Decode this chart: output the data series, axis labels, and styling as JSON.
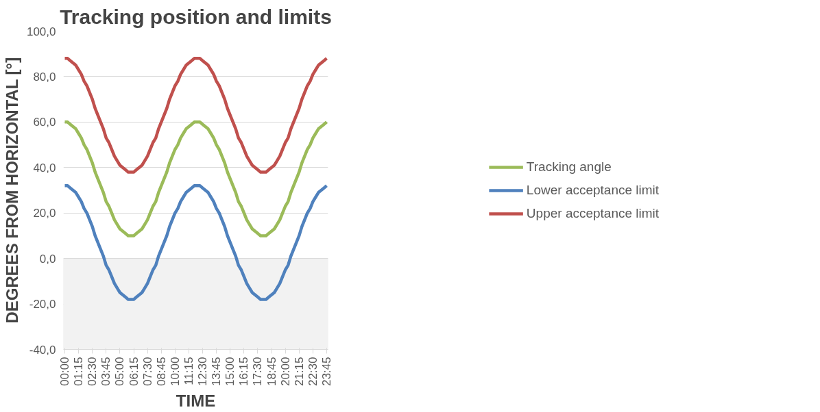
{
  "chart_data": {
    "type": "line",
    "title": "Tracking position and limits",
    "xlabel": "TIME",
    "ylabel": "DEGREES FROM HORIZONTAL [°]",
    "categories": [
      "00:00",
      null,
      null,
      null,
      null,
      "01:15",
      null,
      null,
      null,
      null,
      "02:30",
      null,
      null,
      null,
      null,
      "03:45",
      null,
      null,
      null,
      null,
      "05:00",
      null,
      null,
      null,
      null,
      "06:15",
      null,
      null,
      null,
      null,
      "07:30",
      null,
      null,
      null,
      null,
      "08:45",
      null,
      null,
      null,
      null,
      "10:00",
      null,
      null,
      null,
      null,
      "11:15",
      null,
      null,
      null,
      null,
      "12:30",
      null,
      null,
      null,
      null,
      "13:45",
      null,
      null,
      null,
      null,
      "15:00",
      null,
      null,
      null,
      null,
      "16:15",
      null,
      null,
      null,
      null,
      "17:30",
      null,
      null,
      null,
      null,
      "18:45",
      null,
      null,
      null,
      null,
      "20:00",
      null,
      null,
      null,
      null,
      "21:15",
      null,
      null,
      null,
      null,
      "22:30",
      null,
      null,
      null,
      null,
      "23:45"
    ],
    "series": [
      {
        "name": "Tracking angle",
        "color": "#9bbb59",
        "values": [
          60,
          60,
          59,
          58,
          57,
          55,
          53,
          50,
          48,
          45,
          42,
          38,
          35,
          32,
          29,
          25,
          23,
          20,
          17,
          15,
          13,
          12,
          11,
          10,
          10,
          10,
          11,
          12,
          13,
          15,
          17,
          20,
          23,
          25,
          29,
          32,
          35,
          38,
          42,
          45,
          48,
          50,
          53,
          55,
          57,
          58,
          59,
          60,
          60,
          60,
          59,
          58,
          57,
          55,
          53,
          50,
          48,
          45,
          42,
          38,
          35,
          32,
          29,
          25,
          23,
          20,
          17,
          15,
          13,
          12,
          11,
          10,
          10,
          10,
          11,
          12,
          13,
          15,
          17,
          20,
          23,
          25,
          29,
          32,
          35,
          38,
          42,
          45,
          48,
          50,
          53,
          55,
          57,
          58,
          59,
          60
        ]
      },
      {
        "name": "Lower acceptance limit",
        "color": "#4f81bd",
        "values": [
          32,
          32,
          31,
          30,
          29,
          27,
          25,
          22,
          20,
          17,
          14,
          10,
          7,
          4,
          1,
          -3,
          -5,
          -8,
          -11,
          -13,
          -15,
          -16,
          -17,
          -18,
          -18,
          -18,
          -17,
          -16,
          -15,
          -13,
          -11,
          -8,
          -5,
          -3,
          1,
          4,
          7,
          10,
          14,
          17,
          20,
          22,
          25,
          27,
          29,
          30,
          31,
          32,
          32,
          32,
          31,
          30,
          29,
          27,
          25,
          22,
          20,
          17,
          14,
          10,
          7,
          4,
          1,
          -3,
          -5,
          -8,
          -11,
          -13,
          -15,
          -16,
          -17,
          -18,
          -18,
          -18,
          -17,
          -16,
          -15,
          -13,
          -11,
          -8,
          -5,
          -3,
          1,
          4,
          7,
          10,
          14,
          17,
          20,
          22,
          25,
          27,
          29,
          30,
          31,
          32
        ]
      },
      {
        "name": "Upper acceptance limit",
        "color": "#c0504d",
        "values": [
          88,
          88,
          87,
          86,
          85,
          83,
          81,
          78,
          76,
          73,
          70,
          66,
          63,
          60,
          57,
          53,
          51,
          48,
          45,
          43,
          41,
          40,
          39,
          38,
          38,
          38,
          39,
          40,
          41,
          43,
          45,
          48,
          51,
          53,
          57,
          60,
          63,
          66,
          70,
          73,
          76,
          78,
          81,
          83,
          85,
          86,
          87,
          88,
          88,
          88,
          87,
          86,
          85,
          83,
          81,
          78,
          76,
          73,
          70,
          66,
          63,
          60,
          57,
          53,
          51,
          48,
          45,
          43,
          41,
          40,
          39,
          38,
          38,
          38,
          39,
          40,
          41,
          43,
          45,
          48,
          51,
          53,
          57,
          60,
          63,
          66,
          70,
          73,
          76,
          78,
          81,
          83,
          85,
          86,
          87,
          88
        ]
      }
    ],
    "ylim": [
      -40,
      100
    ],
    "yticks": [
      {
        "value": -40,
        "label": "-40,0"
      },
      {
        "value": -20,
        "label": "-20,0"
      },
      {
        "value": 0,
        "label": "0,0"
      },
      {
        "value": 20,
        "label": "20,0"
      },
      {
        "value": 40,
        "label": "40,0"
      },
      {
        "value": 60,
        "label": "60,0"
      },
      {
        "value": 80,
        "label": "80,0"
      },
      {
        "value": 100,
        "label": "100,0"
      }
    ],
    "bands": [
      {
        "axis": "y",
        "from": -40,
        "to": 0,
        "color": "#f2f2f2"
      }
    ],
    "grid": "y",
    "legend": "right",
    "marker": "none",
    "line_style": "solid"
  }
}
